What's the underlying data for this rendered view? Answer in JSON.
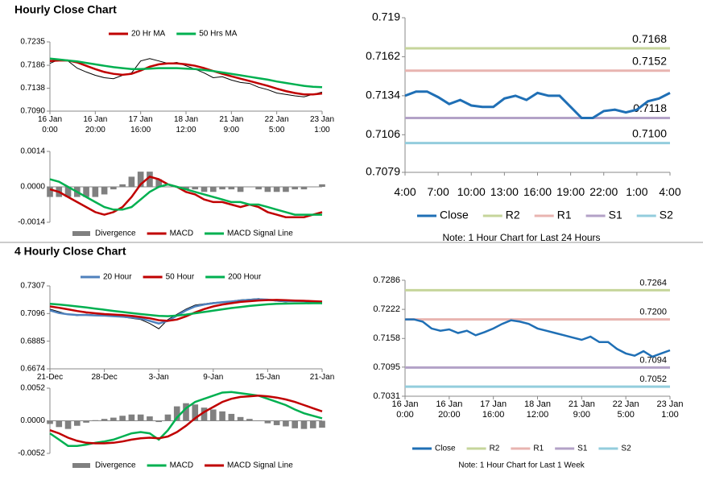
{
  "sections": [
    {
      "title": "Hourly Close Chart"
    },
    {
      "title": "4 Hourly Close Chart"
    }
  ],
  "chart_data": [
    {
      "type": "line",
      "legend": "top",
      "ylim": [
        0.709,
        0.7235
      ],
      "yticks": [
        {
          "value": 0.709,
          "label": "0.7090"
        },
        0.7138,
        0.7186,
        0.7235
      ],
      "categories": [
        "16 Jan\n0:00",
        null,
        null,
        null,
        null,
        "16 Jan\n20:00",
        null,
        null,
        null,
        null,
        "17 Jan\n16:00",
        null,
        null,
        null,
        null,
        "18 Jan\n12:00",
        null,
        null,
        null,
        null,
        "21 Jan\n9:00",
        null,
        null,
        null,
        null,
        "22 Jan\n5:00",
        null,
        null,
        null,
        null,
        "23 Jan\n1:00"
      ],
      "series": [
        {
          "color": "#000000",
          "values": [
            0.719,
            0.7198,
            0.7195,
            0.718,
            0.7172,
            0.7165,
            0.716,
            0.7158,
            0.7165,
            0.717,
            0.7195,
            0.72,
            0.7195,
            0.719,
            0.7192,
            0.7185,
            0.7178,
            0.717,
            0.716,
            0.7162,
            0.7155,
            0.715,
            0.7148,
            0.714,
            0.7135,
            0.7128,
            0.7125,
            0.7122,
            0.712,
            0.7125,
            0.713
          ]
        },
        {
          "name": "20 Hr MA",
          "color": "#c00000",
          "values": [
            0.7195,
            0.7196,
            0.7196,
            0.7192,
            0.7185,
            0.7178,
            0.7172,
            0.7168,
            0.7166,
            0.7168,
            0.7175,
            0.7183,
            0.7188,
            0.719,
            0.719,
            0.7188,
            0.7185,
            0.718,
            0.7174,
            0.7168,
            0.7163,
            0.7158,
            0.7153,
            0.7148,
            0.7143,
            0.7137,
            0.7132,
            0.7128,
            0.7125,
            0.7125,
            0.7127
          ]
        },
        {
          "name": "50 Hrs MA",
          "color": "#00b050",
          "values": [
            0.72,
            0.7198,
            0.7196,
            0.7194,
            0.7191,
            0.7188,
            0.7185,
            0.7182,
            0.718,
            0.7178,
            0.7178,
            0.7179,
            0.718,
            0.718,
            0.718,
            0.7179,
            0.7178,
            0.7176,
            0.7174,
            0.7171,
            0.7168,
            0.7165,
            0.7162,
            0.7159,
            0.7156,
            0.7152,
            0.7149,
            0.7146,
            0.7143,
            0.7141,
            0.714
          ]
        }
      ]
    },
    {
      "type": "line",
      "legend": "bottom",
      "ylim": [
        -0.0014,
        0.0014
      ],
      "yticks": [
        -0.0014,
        {
          "value": 0,
          "label": "0.0000"
        },
        0.0014
      ],
      "series": [
        {
          "name": "Divergence",
          "color": "#808080",
          "style": "bar",
          "values": [
            -0.0004,
            -0.0004,
            -0.0004,
            -0.0004,
            -0.0004,
            -0.0004,
            -0.0003,
            -0.0001,
            0.0001,
            0.0004,
            0.0006,
            0.0006,
            0.0003,
            0,
            0,
            -0.0001,
            -0.0001,
            -0.0002,
            -0.0002,
            -0.0001,
            -0.0001,
            -0.0002,
            0,
            -0.0001,
            -0.0002,
            -0.0002,
            -0.0002,
            -0.0001,
            -0.0001,
            0,
            0.0001
          ]
        },
        {
          "name": "MACD",
          "color": "#c00000",
          "values": [
            -0.0001,
            -0.0002,
            -0.0004,
            -0.0006,
            -0.0008,
            -0.001,
            -0.0011,
            -0.001,
            -0.0008,
            -0.0004,
            0.0001,
            0.0004,
            0.0003,
            0.0001,
            0,
            -0.0002,
            -0.0003,
            -0.0005,
            -0.0006,
            -0.0006,
            -0.0007,
            -0.0008,
            -0.0007,
            -0.0008,
            -0.001,
            -0.0011,
            -0.0012,
            -0.0012,
            -0.0012,
            -0.0011,
            -0.001
          ]
        },
        {
          "name": "MACD Signal Line",
          "color": "#00b050",
          "values": [
            0.0003,
            0.0002,
            0,
            -0.0002,
            -0.0004,
            -0.0006,
            -0.0008,
            -0.0009,
            -0.0009,
            -0.0008,
            -0.0005,
            -0.0002,
            0,
            0.0001,
            0,
            -0.0001,
            -0.0002,
            -0.0003,
            -0.0004,
            -0.0005,
            -0.0006,
            -0.0006,
            -0.0007,
            -0.0007,
            -0.0008,
            -0.0009,
            -0.001,
            -0.0011,
            -0.0011,
            -0.0011,
            -0.0011
          ]
        }
      ]
    },
    {
      "type": "line",
      "legend": "bottom",
      "note": "Note: 1 Hour Chart for Last 24 Hours",
      "ylim": [
        0.7079,
        0.719
      ],
      "yticks": [
        0.7079,
        0.7106,
        0.7134,
        0.7162,
        0.719
      ],
      "categories": [
        "4:00",
        null,
        null,
        "7:00",
        null,
        null,
        "10:00",
        null,
        null,
        "13:00",
        null,
        null,
        "16:00",
        null,
        null,
        "19:00",
        null,
        null,
        "22:00",
        null,
        null,
        "1:00",
        null,
        null,
        "4:00"
      ],
      "series": [
        {
          "name": "Close",
          "color": "#1f6fb5",
          "values": [
            0.7134,
            0.7137,
            0.7137,
            0.7133,
            0.7128,
            0.7131,
            0.7127,
            0.7126,
            0.7126,
            0.7132,
            0.7134,
            0.7131,
            0.7136,
            0.7134,
            0.7134,
            0.7126,
            0.7118,
            0.7118,
            0.7123,
            0.7124,
            0.7122,
            0.7124,
            0.713,
            0.7132,
            0.7136
          ]
        }
      ],
      "levels": [
        {
          "name": "R2",
          "color": "#c6d59b",
          "value": 0.7168
        },
        {
          "name": "R1",
          "color": "#e8b4b0",
          "value": 0.7152
        },
        {
          "name": "S1",
          "color": "#b3a2c7",
          "value": 0.7118
        },
        {
          "name": "S2",
          "color": "#93cddd",
          "value": 0.71,
          "value_label": "0.7100"
        }
      ]
    },
    {
      "type": "line",
      "legend": "top",
      "ylim": [
        0.6674,
        0.7307
      ],
      "yticks": [
        0.6674,
        0.6885,
        0.7096,
        0.7307
      ],
      "categories": [
        "21-Dec",
        null,
        null,
        null,
        null,
        null,
        "28-Dec",
        null,
        null,
        null,
        null,
        null,
        "3-Jan",
        null,
        null,
        null,
        null,
        null,
        "9-Jan",
        null,
        null,
        null,
        null,
        null,
        "15-Jan",
        null,
        null,
        null,
        null,
        null,
        "21-Jan"
      ],
      "series": [
        {
          "color": "#000000",
          "values": [
            0.713,
            0.711,
            0.709,
            0.708,
            0.709,
            0.7085,
            0.708,
            0.7075,
            0.707,
            0.706,
            0.705,
            0.702,
            0.698,
            0.705,
            0.709,
            0.713,
            0.716,
            0.717,
            0.718,
            0.7185,
            0.719,
            0.72,
            0.7205,
            0.721,
            0.72,
            0.719,
            0.7185,
            0.7195,
            0.719,
            0.718,
            0.717
          ]
        },
        {
          "name": "20 Hour",
          "color": "#4f81bd",
          "values": [
            0.712,
            0.71,
            0.709,
            0.7085,
            0.7085,
            0.7082,
            0.708,
            0.7076,
            0.7072,
            0.7066,
            0.7058,
            0.704,
            0.702,
            0.704,
            0.708,
            0.712,
            0.715,
            0.7165,
            0.7175,
            0.7182,
            0.7188,
            0.7195,
            0.72,
            0.7205,
            0.7202,
            0.7195,
            0.719,
            0.7192,
            0.719,
            0.7185,
            0.7178
          ]
        },
        {
          "name": "50 Hour",
          "color": "#c00000",
          "values": [
            0.715,
            0.714,
            0.7128,
            0.7115,
            0.7105,
            0.7098,
            0.7092,
            0.7088,
            0.7084,
            0.7078,
            0.707,
            0.706,
            0.7045,
            0.704,
            0.705,
            0.7075,
            0.7105,
            0.713,
            0.715,
            0.7165,
            0.7175,
            0.7185,
            0.719,
            0.7196,
            0.7199,
            0.72,
            0.7198,
            0.7195,
            0.7193,
            0.719,
            0.7187
          ]
        },
        {
          "name": "200 Hour",
          "color": "#00b050",
          "values": [
            0.717,
            0.7165,
            0.7158,
            0.715,
            0.7142,
            0.7134,
            0.7125,
            0.7116,
            0.7108,
            0.71,
            0.7092,
            0.7085,
            0.7078,
            0.7076,
            0.708,
            0.7088,
            0.7098,
            0.7108,
            0.7118,
            0.7128,
            0.7138,
            0.7146,
            0.7154,
            0.716,
            0.7166,
            0.717,
            0.7172,
            0.7173,
            0.7174,
            0.7175,
            0.7175
          ]
        }
      ]
    },
    {
      "type": "line",
      "legend": "bottom",
      "ylim": [
        -0.0052,
        0.0052
      ],
      "yticks": [
        -0.0052,
        {
          "value": 0,
          "label": "0.0000"
        },
        0.0052
      ],
      "series": [
        {
          "name": "Divergence",
          "color": "#808080",
          "style": "bar",
          "values": [
            -0.0005,
            -0.001,
            -0.0013,
            -0.0008,
            -0.0003,
            0.0001,
            0.0003,
            0.0005,
            0.0008,
            0.001,
            0.001,
            0.0007,
            -0.0002,
            0.001,
            0.0023,
            0.0028,
            0.0026,
            0.0021,
            0.0018,
            0.0015,
            0.0011,
            0.0006,
            0.0003,
            0,
            -0.0004,
            -0.0007,
            -0.0009,
            -0.0012,
            -0.0013,
            -0.0012,
            -0.0011
          ]
        },
        {
          "name": "MACD",
          "color": "#00b050",
          "values": [
            -0.002,
            -0.003,
            -0.004,
            -0.004,
            -0.0038,
            -0.0035,
            -0.0033,
            -0.003,
            -0.0025,
            -0.002,
            -0.0018,
            -0.002,
            -0.003,
            -0.0015,
            0.0005,
            0.002,
            0.003,
            0.0035,
            0.004,
            0.0045,
            0.0046,
            0.0044,
            0.0042,
            0.004,
            0.0035,
            0.003,
            0.0025,
            0.0018,
            0.0012,
            0.0008,
            0.0004
          ]
        },
        {
          "name": "MACD Signal Line",
          "color": "#c00000",
          "values": [
            -0.0015,
            -0.002,
            -0.0027,
            -0.0032,
            -0.0035,
            -0.0036,
            -0.0036,
            -0.0035,
            -0.0033,
            -0.003,
            -0.0028,
            -0.0027,
            -0.0028,
            -0.0025,
            -0.0018,
            -0.0008,
            0.0004,
            0.0014,
            0.0022,
            0.003,
            0.0035,
            0.0038,
            0.0039,
            0.004,
            0.0039,
            0.0037,
            0.0034,
            0.003,
            0.0025,
            0.002,
            0.0015
          ]
        }
      ]
    },
    {
      "type": "line",
      "legend": "bottom",
      "note": "Note: 1 Hour Chart for Last 1 Week",
      "ylim": [
        0.7031,
        0.7286
      ],
      "yticks": [
        0.7031,
        0.7095,
        0.7158,
        0.7222,
        0.7286
      ],
      "categories": [
        "16 Jan\n0:00",
        null,
        null,
        null,
        null,
        "16 Jan\n20:00",
        null,
        null,
        null,
        null,
        "17 Jan\n16:00",
        null,
        null,
        null,
        null,
        "18 Jan\n12:00",
        null,
        null,
        null,
        null,
        "21 Jan\n9:00",
        null,
        null,
        null,
        null,
        "22 Jan\n5:00",
        null,
        null,
        null,
        null,
        "23 Jan\n1:00"
      ],
      "series": [
        {
          "name": "Close",
          "color": "#1f6fb5",
          "values": [
            0.72,
            0.72,
            0.7195,
            0.718,
            0.7175,
            0.7178,
            0.717,
            0.7175,
            0.7165,
            0.7172,
            0.718,
            0.719,
            0.7198,
            0.7195,
            0.719,
            0.718,
            0.7175,
            0.717,
            0.7165,
            0.716,
            0.7155,
            0.7162,
            0.715,
            0.715,
            0.7135,
            0.7125,
            0.712,
            0.713,
            0.7118,
            0.7125,
            0.7132
          ]
        }
      ],
      "levels": [
        {
          "name": "R2",
          "color": "#c6d59b",
          "value": 0.7264
        },
        {
          "name": "R1",
          "color": "#e8b4b0",
          "value": 0.72,
          "value_label": "0.7200"
        },
        {
          "name": "S1",
          "color": "#b3a2c7",
          "value": 0.7094
        },
        {
          "name": "S2",
          "color": "#93cddd",
          "value": 0.7052
        }
      ]
    }
  ]
}
